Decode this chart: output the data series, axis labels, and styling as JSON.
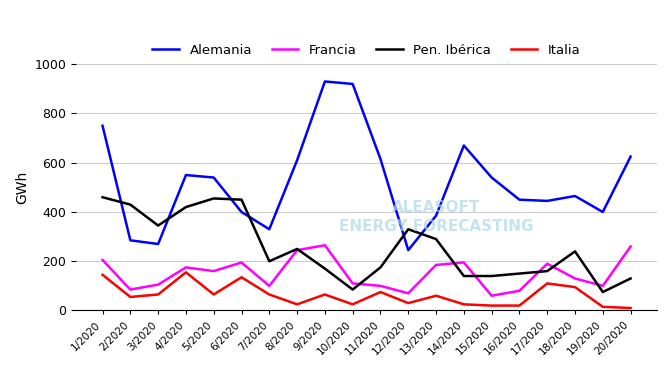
{
  "title": "",
  "ylabel": "GWh",
  "series": {
    "Alemania": {
      "color": "#0000FF",
      "values": [
        750,
        285,
        270,
        550,
        540,
        400,
        330,
        610,
        930,
        920,
        615,
        245,
        385,
        670,
        540,
        450,
        445,
        465,
        400,
        625
      ]
    },
    "Francia": {
      "color": "#FF00FF",
      "values": [
        205,
        85,
        105,
        175,
        160,
        195,
        100,
        245,
        265,
        110,
        100,
        70,
        185,
        195,
        60,
        80,
        190,
        130,
        100,
        260
      ]
    },
    "Pen. Ibérica": {
      "color": "#000000",
      "values": [
        460,
        430,
        345,
        420,
        455,
        450,
        200,
        250,
        170,
        85,
        175,
        330,
        290,
        140,
        140,
        150,
        160,
        240,
        75,
        130
      ]
    },
    "Italia": {
      "color": "#FF0000",
      "values": [
        145,
        55,
        65,
        155,
        65,
        135,
        65,
        25,
        65,
        25,
        75,
        30,
        60,
        25,
        20,
        20,
        110,
        95,
        15,
        10
      ]
    }
  },
  "ylim": [
    0,
    1000
  ],
  "yticks": [
    0,
    200,
    400,
    600,
    800,
    1000
  ],
  "num_points": 20,
  "x_labels": [
    "1/2020",
    "2/2020",
    "3/2020",
    "4/2020",
    "5/2020",
    "6/2020",
    "7/2020",
    "8/2020",
    "9/2020",
    "10/2020",
    "11/2020",
    "12/2020",
    "13/2020",
    "14/2020",
    "15/2020",
    "16/2020",
    "17/2020",
    "18/2020",
    "19/2020",
    "20/2020"
  ],
  "background_color": "#FFFFFF",
  "grid_color": "#CCCCCC",
  "watermark": "ALEASOFT\nENERGY FORECASTING",
  "watermark_color": "#ADD8E6"
}
